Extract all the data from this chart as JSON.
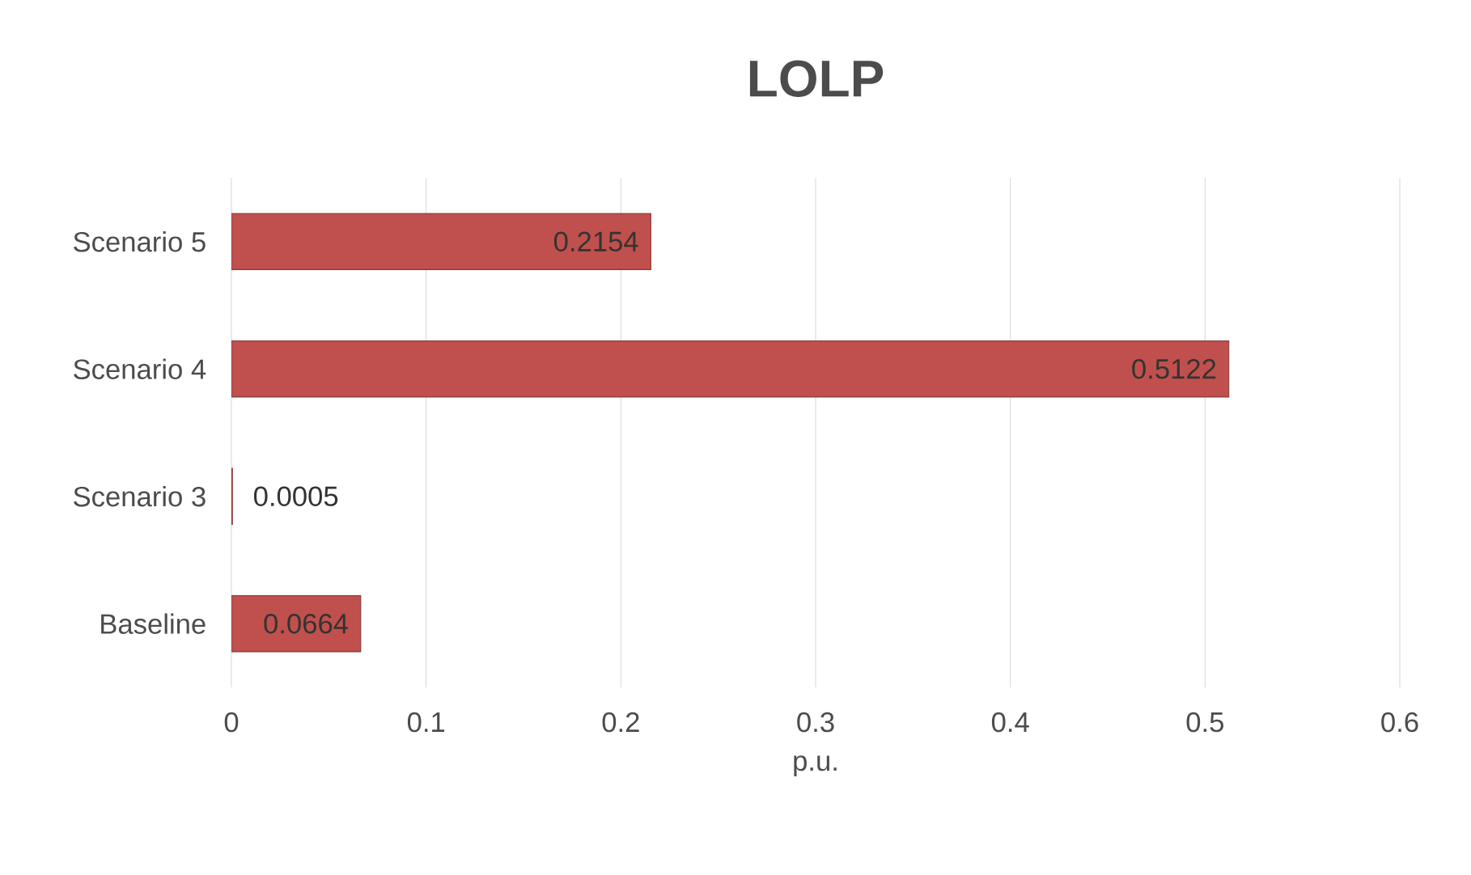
{
  "chart_data": {
    "type": "bar",
    "orientation": "horizontal",
    "title": "LOLP",
    "xlabel": "p.u.",
    "categories": [
      "Scenario 5",
      "Scenario 4",
      "Scenario 3",
      "Baseline"
    ],
    "values": [
      0.2154,
      0.5122,
      0.0005,
      0.0664
    ],
    "color": "#c0504d",
    "data_labels": true,
    "xlim": [
      0,
      0.6
    ],
    "xticks": [
      0,
      0.1,
      0.2,
      0.3,
      0.4,
      0.5,
      0.6
    ],
    "grid": "x"
  }
}
